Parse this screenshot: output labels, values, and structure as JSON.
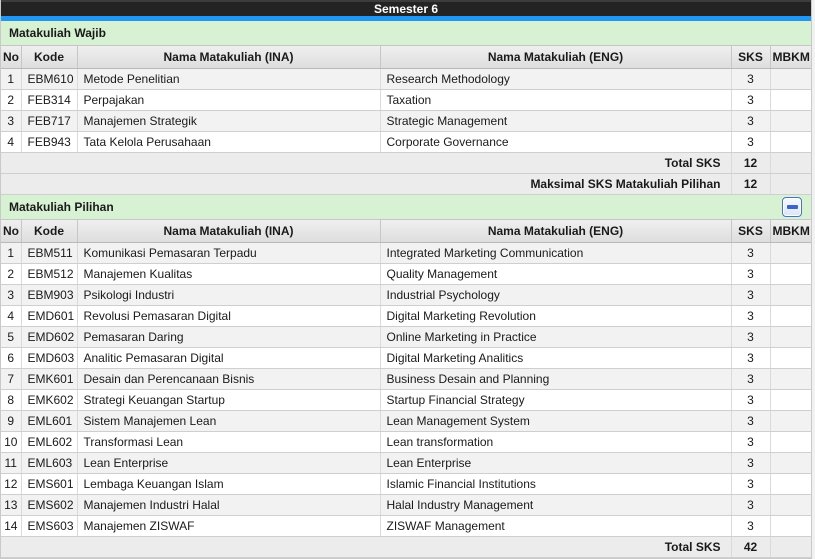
{
  "header": {
    "title": "Semester 6"
  },
  "colors": {
    "titlebar_bg": "#232323",
    "accent_blue": "#2196f3",
    "section_green": "#d7f2d3",
    "header_row_top": "#efefef",
    "header_row_bg": "#dedede",
    "row_alt_bg": "#f2f2f2",
    "footer_bg": "#ececec"
  },
  "columns": [
    "No",
    "Kode",
    "Nama Matakuliah (INA)",
    "Nama Matakuliah (ENG)",
    "SKS",
    "MBKM"
  ],
  "sections": [
    {
      "title": "Matakuliah Wajib",
      "has_collapse_button": false,
      "rows": [
        {
          "no": "1",
          "kode": "EBM610",
          "ina": "Metode Penelitian",
          "eng": "Research Methodology",
          "sks": "3",
          "mbkm": ""
        },
        {
          "no": "2",
          "kode": "FEB314",
          "ina": "Perpajakan",
          "eng": "Taxation",
          "sks": "3",
          "mbkm": ""
        },
        {
          "no": "3",
          "kode": "FEB717",
          "ina": "Manajemen Strategik",
          "eng": "Strategic Management",
          "sks": "3",
          "mbkm": ""
        },
        {
          "no": "4",
          "kode": "FEB943",
          "ina": "Tata Kelola Perusahaan",
          "eng": "Corporate Governance",
          "sks": "3",
          "mbkm": ""
        }
      ],
      "footers": [
        {
          "label": "Total SKS",
          "sks": "12",
          "mbkm": ""
        },
        {
          "label": "Maksimal SKS Matakuliah Pilihan",
          "sks": "12",
          "mbkm": ""
        }
      ]
    },
    {
      "title": "Matakuliah Pilihan",
      "has_collapse_button": true,
      "collapse_icon": "minus-icon",
      "rows": [
        {
          "no": "1",
          "kode": "EBM511",
          "ina": "Komunikasi Pemasaran Terpadu",
          "eng": "Integrated Marketing Communication",
          "sks": "3",
          "mbkm": ""
        },
        {
          "no": "2",
          "kode": "EBM512",
          "ina": "Manajemen Kualitas",
          "eng": "Quality Management",
          "sks": "3",
          "mbkm": ""
        },
        {
          "no": "3",
          "kode": "EBM903",
          "ina": "Psikologi Industri",
          "eng": "Industrial Psychology",
          "sks": "3",
          "mbkm": ""
        },
        {
          "no": "4",
          "kode": "EMD601",
          "ina": "Revolusi Pemasaran Digital",
          "eng": "Digital Marketing Revolution",
          "sks": "3",
          "mbkm": ""
        },
        {
          "no": "5",
          "kode": "EMD602",
          "ina": "Pemasaran Daring",
          "eng": "Online Marketing in Practice",
          "sks": "3",
          "mbkm": ""
        },
        {
          "no": "6",
          "kode": "EMD603",
          "ina": "Analitic Pemasaran Digital",
          "eng": "Digital Marketing Analitics",
          "sks": "3",
          "mbkm": ""
        },
        {
          "no": "7",
          "kode": "EMK601",
          "ina": "Desain dan Perencanaan Bisnis",
          "eng": "Business Desain and Planning",
          "sks": "3",
          "mbkm": ""
        },
        {
          "no": "8",
          "kode": "EMK602",
          "ina": "Strategi Keuangan Startup",
          "eng": "Startup Financial Strategy",
          "sks": "3",
          "mbkm": ""
        },
        {
          "no": "9",
          "kode": "EML601",
          "ina": "Sistem Manajemen Lean",
          "eng": "Lean Management System",
          "sks": "3",
          "mbkm": ""
        },
        {
          "no": "10",
          "kode": "EML602",
          "ina": "Transformasi Lean",
          "eng": "Lean transformation",
          "sks": "3",
          "mbkm": ""
        },
        {
          "no": "11",
          "kode": "EML603",
          "ina": "Lean Enterprise",
          "eng": "Lean Enterprise",
          "sks": "3",
          "mbkm": ""
        },
        {
          "no": "12",
          "kode": "EMS601",
          "ina": "Lembaga Keuangan Islam",
          "eng": "Islamic Financial Institutions",
          "sks": "3",
          "mbkm": ""
        },
        {
          "no": "13",
          "kode": "EMS602",
          "ina": "Manajemen Industri Halal",
          "eng": "Halal Industry Management",
          "sks": "3",
          "mbkm": ""
        },
        {
          "no": "14",
          "kode": "EMS603",
          "ina": "Manajemen ZISWAF",
          "eng": "ZISWAF Management",
          "sks": "3",
          "mbkm": ""
        }
      ],
      "footers": [
        {
          "label": "Total SKS",
          "sks": "42",
          "mbkm": ""
        }
      ]
    }
  ]
}
